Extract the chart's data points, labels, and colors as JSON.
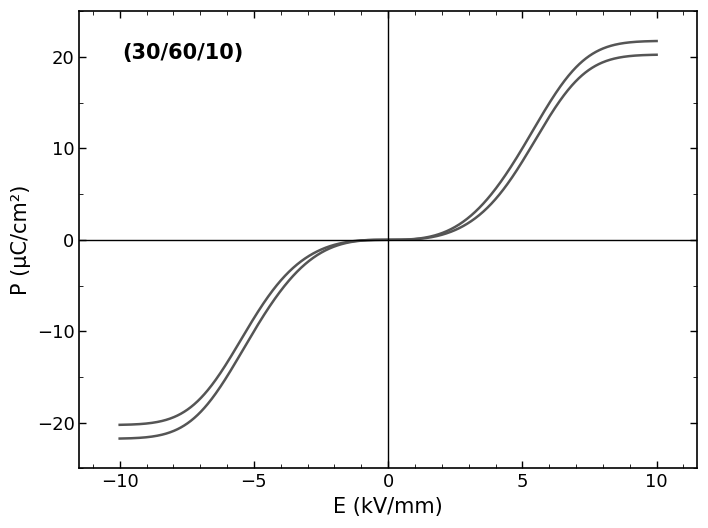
{
  "title": "(30/60/10)",
  "xlabel": "E (kV/mm)",
  "ylabel": "P (μC/cm²)",
  "xlim": [
    -11.5,
    11.5
  ],
  "ylim": [
    -25,
    25
  ],
  "xticks": [
    -10,
    -5,
    0,
    5,
    10
  ],
  "yticks": [
    -20,
    -10,
    0,
    10,
    20
  ],
  "line_color": "#555555",
  "line_width": 1.8,
  "background_color": "#ffffff",
  "axis_line_color": "#000000",
  "font_size_label": 15,
  "font_size_tick": 13,
  "font_size_annotation": 15
}
